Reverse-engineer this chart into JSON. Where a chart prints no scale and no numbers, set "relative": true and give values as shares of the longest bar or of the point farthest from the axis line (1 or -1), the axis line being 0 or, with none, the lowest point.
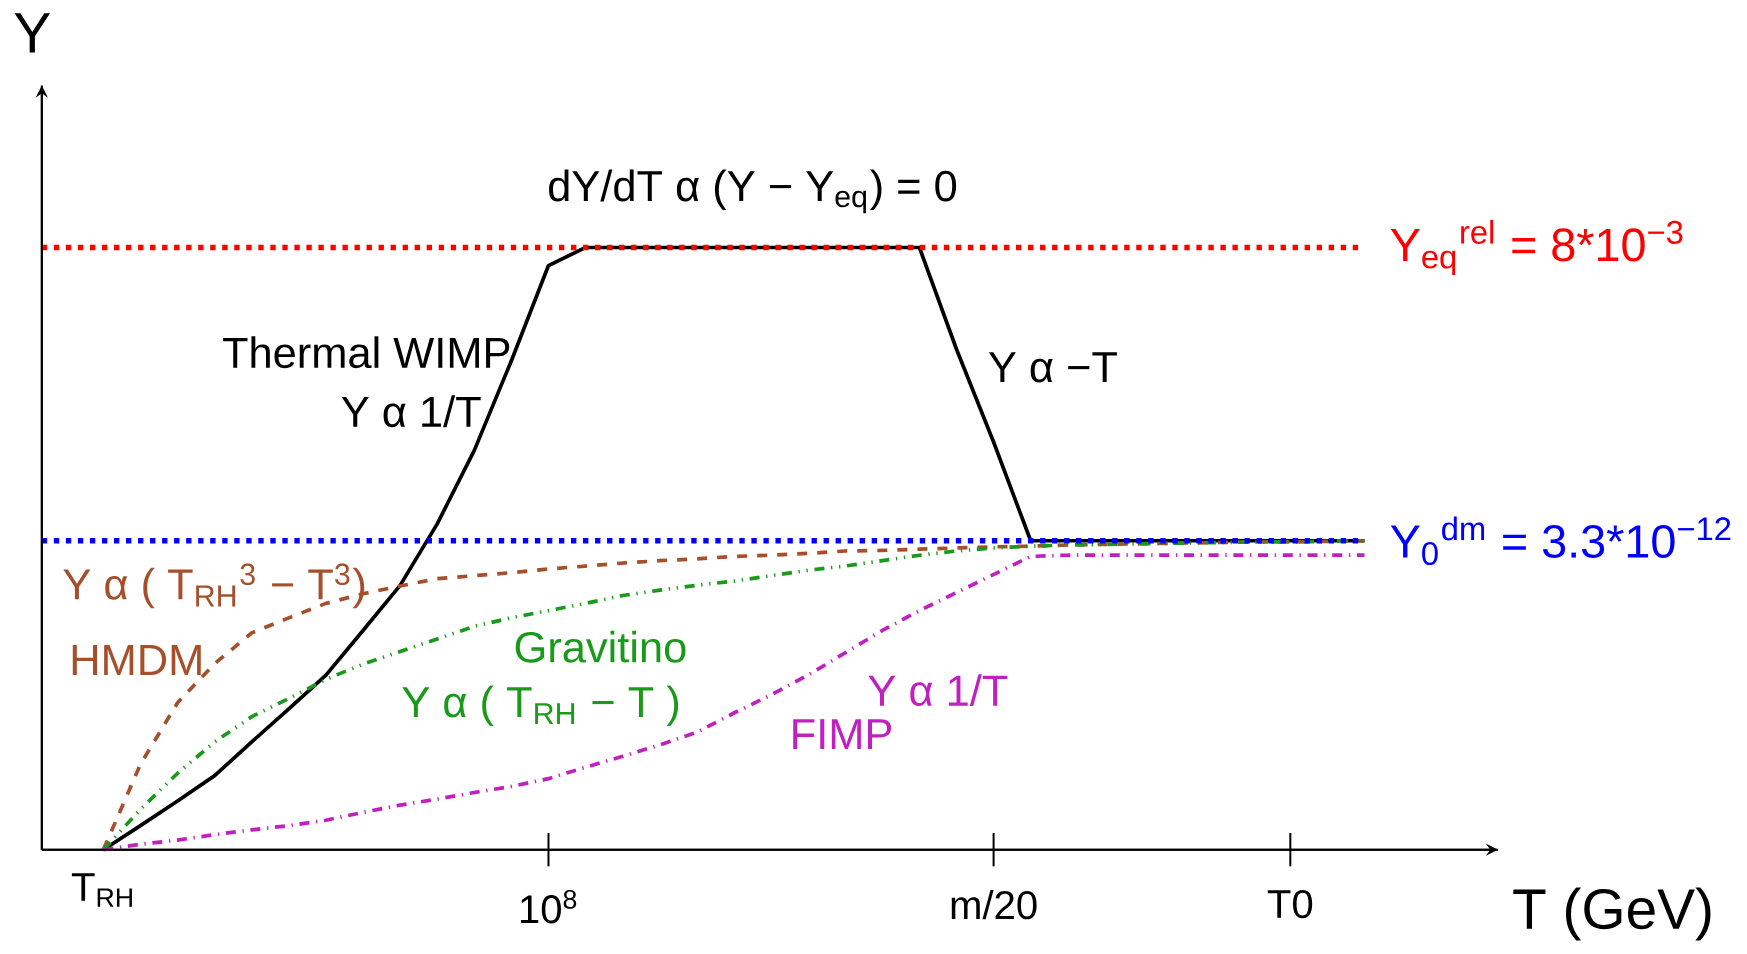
{
  "chart_data": {
    "type": "line",
    "relative": true,
    "xlabel": "T (GeV)",
    "ylabel": "Y",
    "categories": [
      "T$_{RH}$",
      null,
      null,
      null,
      null,
      null,
      null,
      null,
      null,
      null,
      null,
      null,
      "10$^{8}$",
      null,
      null,
      null,
      null,
      null,
      null,
      null,
      null,
      null,
      null,
      null,
      "m/20",
      null,
      null,
      null,
      null,
      null,
      null,
      null,
      "T0",
      null,
      null
    ],
    "marker": "none",
    "series": [
      {
        "name": "Thermal WIMP",
        "color": "#000000",
        "line_style": "solid",
        "values": [
          0,
          0.04,
          0.081,
          0.123,
          0.179,
          0.234,
          0.29,
          0.364,
          0.439,
          0.541,
          0.663,
          0.812,
          0.97,
          1,
          1,
          1,
          1,
          1,
          1,
          1,
          1,
          1,
          1,
          0.831,
          0.677,
          0.513,
          0.513,
          0.513,
          0.513,
          0.513,
          0.513,
          0.513,
          0.513,
          0.513,
          0.513
        ]
      },
      {
        "name": "HMDM",
        "color": "#a5502a",
        "line_style": "dashed",
        "values": [
          0,
          0.142,
          0.244,
          0.309,
          0.36,
          0.385,
          0.409,
          0.425,
          0.438,
          0.45,
          0.455,
          0.46,
          0.466,
          0.471,
          0.476,
          0.48,
          0.483,
          0.487,
          0.489,
          0.492,
          0.496,
          0.497,
          0.499,
          0.501,
          0.503,
          0.504,
          0.506,
          0.507,
          0.508,
          0.509,
          0.51,
          0.511,
          0.511,
          0.512,
          0.513
        ]
      },
      {
        "name": "Gravitino",
        "color": "#1a9a1a",
        "line_style": "dashdotdot",
        "values": [
          0,
          0.067,
          0.127,
          0.179,
          0.221,
          0.251,
          0.283,
          0.308,
          0.329,
          0.35,
          0.371,
          0.385,
          0.397,
          0.409,
          0.422,
          0.431,
          0.439,
          0.446,
          0.455,
          0.464,
          0.471,
          0.48,
          0.489,
          0.496,
          0.501,
          0.504,
          0.506,
          0.507,
          0.508,
          0.509,
          0.51,
          0.511,
          0.511,
          0.512,
          0.513
        ]
      },
      {
        "name": "FIMP",
        "color": "#c020c0",
        "line_style": "dashdot",
        "values": [
          0,
          0.009,
          0.016,
          0.025,
          0.033,
          0.04,
          0.049,
          0.062,
          0.074,
          0.084,
          0.095,
          0.105,
          0.118,
          0.137,
          0.155,
          0.174,
          0.195,
          0.227,
          0.257,
          0.29,
          0.327,
          0.364,
          0.397,
          0.427,
          0.457,
          0.487,
          0.489,
          0.489,
          0.489,
          0.489,
          0.489,
          0.489,
          0.489,
          0.489,
          0.489
        ]
      }
    ],
    "ref_lines": [
      {
        "axis": "y",
        "value": 1,
        "color": "#ff0000",
        "line_style": "dotted"
      },
      {
        "axis": "y",
        "value": 0.513,
        "color": "#0000ff",
        "line_style": "dotted"
      }
    ],
    "annotations": [
      "dY/dT  α  (Y − Y$_{eq}$) = 0",
      "Y  α 1/T",
      "Y  α −T",
      "Y  α  ( T$_{RH}$$^{3}$ − T$^{3}$)",
      "Y  α  ( T$_{RH}$ − T )",
      "Y  α 1/T",
      "Y$_{eq}$$^{rel}$ = 8*10$^{−3}$",
      "Y$_{0}$$^{dm}$ = 3.3*10$^{−12}$"
    ]
  }
}
